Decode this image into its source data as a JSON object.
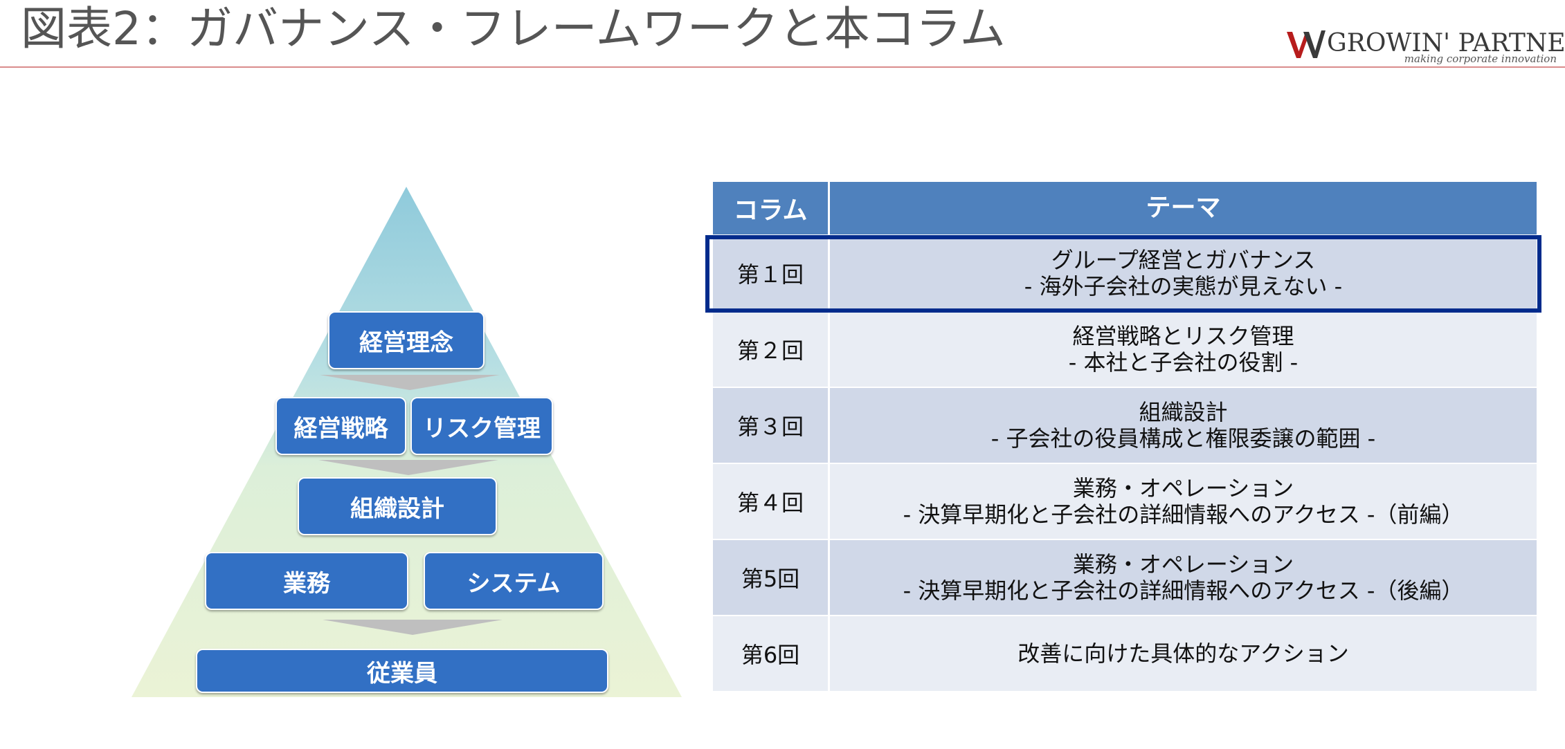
{
  "slide": {
    "title": "図表2：ガバナンス・フレームワークと本コラム"
  },
  "logo": {
    "name": "GROWIN' PARTNERS",
    "tagline": "making corporate innovation"
  },
  "colors": {
    "box_blue": "#3270c4",
    "header_blue": "#4f81bd",
    "row_dark": "#d0d8e8",
    "row_light": "#e9edf4",
    "highlight_border": "#002b8c",
    "pyramid_top": "#8fcadb",
    "pyramid_bottom": "#ebf3d6",
    "arrow_gray": "#bfbfbf"
  },
  "pyramid": {
    "philosophy": "経営理念",
    "strategy": "経営戦略",
    "risk": "リスク管理",
    "org_design": "組織設計",
    "operations": "業務",
    "system": "システム",
    "employees": "従業員"
  },
  "table": {
    "headers": {
      "column": "コラム",
      "theme": "テーマ"
    },
    "rows": [
      {
        "no": "第１回",
        "line1": "グループ経営とガバナンス",
        "line2": "- 海外子会社の実態が見えない -"
      },
      {
        "no": "第２回",
        "line1": "経営戦略とリスク管理",
        "line2": "- 本社と子会社の役割 -"
      },
      {
        "no": "第３回",
        "line1": "組織設計",
        "line2": "- 子会社の役員構成と権限委譲の範囲 -"
      },
      {
        "no": "第４回",
        "line1": "業務・オペレーション",
        "line2": "- 決算早期化と子会社の詳細情報へのアクセス -（前編）"
      },
      {
        "no": "第5回",
        "line1": "業務・オペレーション",
        "line2": "- 決算早期化と子会社の詳細情報へのアクセス -（後編）"
      },
      {
        "no": "第6回",
        "line1": "改善に向けた具体的なアクション",
        "line2": ""
      }
    ],
    "highlighted_row": 1
  }
}
